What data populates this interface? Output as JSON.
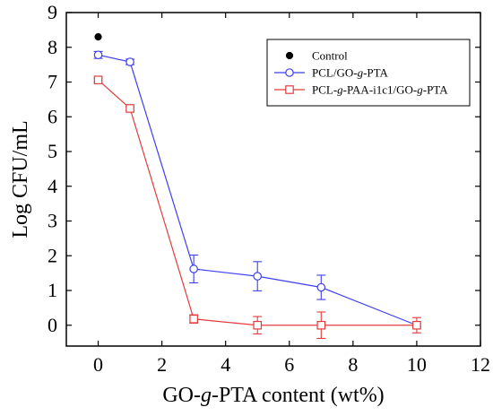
{
  "chart_data": {
    "type": "line",
    "xlabel_parts": [
      "GO-",
      "g",
      "-PTA content (wt%)"
    ],
    "ylabel": "Log CFU/mL",
    "xlim": [
      -1,
      12
    ],
    "ylim": [
      -0.6,
      9
    ],
    "xticks": [
      0,
      2,
      4,
      6,
      8,
      10,
      12
    ],
    "yticks": [
      0,
      1,
      2,
      3,
      4,
      5,
      6,
      7,
      8,
      9
    ],
    "legend_position": "top-right",
    "series": [
      {
        "name": "Control",
        "name_parts": [
          "Control"
        ],
        "marker": "filled-circle",
        "color": "#000000",
        "line": false,
        "x": [
          0
        ],
        "y": [
          8.3
        ],
        "err": [
          0
        ]
      },
      {
        "name": "PCL/GO-g-PTA",
        "name_parts": [
          "PCL/GO-",
          "g",
          "-PTA"
        ],
        "marker": "open-circle",
        "color": "#3f3ff0",
        "line": true,
        "x": [
          0,
          1,
          3,
          5,
          7,
          10
        ],
        "y": [
          7.78,
          7.58,
          1.62,
          1.41,
          1.09,
          0.0
        ],
        "err": [
          0.1,
          0.08,
          0.4,
          0.42,
          0.35,
          0.05
        ]
      },
      {
        "name": "PCL-g-PAA-i1c1/GO-g-PTA",
        "name_parts": [
          "PCL-",
          "g",
          "-PAA-i1c1/GO-",
          "g",
          "-PTA"
        ],
        "marker": "open-square",
        "color": "#e23c3c",
        "line": true,
        "x": [
          0,
          1,
          3,
          5,
          7,
          10
        ],
        "y": [
          7.06,
          6.24,
          0.18,
          0.0,
          0.0,
          0.0
        ],
        "err": [
          0.05,
          0.05,
          0.12,
          0.25,
          0.38,
          0.22
        ]
      }
    ]
  }
}
